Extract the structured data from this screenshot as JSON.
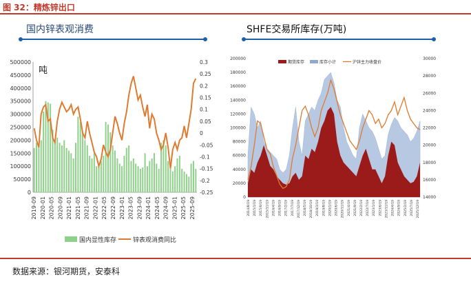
{
  "figure_title": "图 32：精炼锌出口",
  "source": "数据来源：银河期货，安泰科",
  "chart_data": [
    {
      "type": "bar+line",
      "title": "国内锌表观消费",
      "unit_label": "吨",
      "y_left_lim": [
        0,
        500000
      ],
      "y_left_ticks": [
        "500000",
        "450000",
        "400000",
        "350000",
        "300000",
        "250000",
        "200000",
        "150000",
        "100000",
        "50000",
        "0"
      ],
      "y_right_lim": [
        -0.25,
        0.3
      ],
      "y_right_ticks": [
        "0.3",
        "0.25",
        "0.2",
        "0.15",
        "0.1",
        "0.05",
        "0",
        "-0.05",
        "-0.1",
        "-0.15",
        "-0.2",
        "-0.25"
      ],
      "x_ticks": [
        "2019-09",
        "2020-01",
        "2020-05",
        "2020-09",
        "2021-01",
        "2021-05",
        "2021-09",
        "2022-01",
        "2022-05",
        "2022-09",
        "2023-01",
        "2023-05",
        "2023-09",
        "2024-01",
        "2024-05",
        "2024-09",
        "2025-01",
        "2025-05",
        "2025-09"
      ],
      "legend": [
        "国内显性库存",
        "锌表观消费同比"
      ],
      "colors": {
        "bar": "#8fd18a",
        "line": "#e07a2e"
      },
      "bar_series": {
        "name": "国内显性库存",
        "values": [
          170000,
          190000,
          180000,
          200000,
          310000,
          350000,
          345000,
          340000,
          240000,
          200000,
          210000,
          190000,
          180000,
          200000,
          170000,
          160000,
          150000,
          130000,
          190000,
          290000,
          270000,
          230000,
          200000,
          180000,
          140000,
          130000,
          150000,
          100000,
          110000,
          120000,
          140000,
          270000,
          260000,
          230000,
          180000,
          160000,
          130000,
          110000,
          100000,
          140000,
          170000,
          180000,
          120000,
          130000,
          110000,
          100000,
          90000,
          95000,
          150000,
          100000,
          120000,
          130000,
          150000,
          110000,
          90000,
          190000,
          200000,
          180000,
          120000,
          90000,
          80000,
          100000,
          130000,
          140000,
          90000,
          80000,
          70000,
          60000,
          110000,
          120000,
          90000
        ]
      },
      "line_series": {
        "name": "锌表观消费同比",
        "values": [
          0.02,
          -0.03,
          -0.06,
          0.08,
          0.11,
          0.12,
          0.05,
          0.06,
          -0.02,
          -0.04,
          0.05,
          0.1,
          0.13,
          0.11,
          0.09,
          0.1,
          0.12,
          0.08,
          0.1,
          0.11,
          0.06,
          0.0,
          -0.02,
          0.05,
          0.0,
          -0.04,
          -0.08,
          -0.1,
          -0.14,
          -0.11,
          -0.05,
          -0.08,
          -0.1,
          -0.07,
          0.0,
          0.07,
          0.04,
          0.0,
          -0.03,
          0.04,
          0.09,
          0.16,
          0.21,
          0.24,
          0.19,
          0.14,
          0.16,
          0.11,
          0.07,
          0.12,
          0.02,
          0.08,
          0.06,
          0.0,
          -0.03,
          -0.07,
          -0.05,
          0.0,
          -0.06,
          -0.15,
          -0.07,
          -0.04,
          -0.07,
          -0.03,
          -0.02,
          0.03,
          -0.02,
          0.04,
          0.1,
          0.21,
          0.23
        ]
      }
    },
    {
      "type": "area+line",
      "title": "SHFE交易所库存(万吨)",
      "y_left_lim": [
        0,
        200000
      ],
      "y_left_ticks": [
        "200000",
        "180000",
        "160000",
        "140000",
        "120000",
        "100000",
        "80000",
        "60000",
        "40000",
        "20000",
        "0"
      ],
      "y_right_lim": [
        14000,
        30000
      ],
      "y_right_ticks": [
        "30000",
        "28000",
        "26000",
        "24000",
        "22000",
        "20000",
        "18000",
        "16000",
        "14000"
      ],
      "x_ticks": [
        "2014/8/19",
        "2015/1/19",
        "2015/6/19",
        "2015/11/19",
        "2016/4/19",
        "2016/9/19",
        "2017/2/19",
        "2017/7/19",
        "2017/12/19",
        "2018/5/19",
        "2018/10/19",
        "2019/3/19",
        "2019/8/19",
        "2020/1/19",
        "2020/6/19",
        "2020/11/19",
        "2021/4/19",
        "2021/9/19",
        "2022/2/19",
        "2022/7/19",
        "2023/1/19",
        "2023/6/19",
        "2023/11/19",
        "2024/4/19",
        "2024/9/19",
        "2025/2/19",
        "2025/7/19",
        "2025/12/19"
      ],
      "legend": [
        "期货库存",
        "库存小计",
        "沪锌主力收盘价"
      ],
      "colors": {
        "futures": "#9b1b1b",
        "subtotal": "#b7c9e2",
        "price": "#e07a2e"
      },
      "futures_inventory": [
        20000,
        40000,
        35000,
        50000,
        60000,
        75000,
        60000,
        45000,
        40000,
        30000,
        25000,
        20000,
        18000,
        20000,
        30000,
        35000,
        25000,
        30000,
        60000,
        55000,
        70000,
        65000,
        80000,
        100000,
        110000,
        125000,
        130000,
        120000,
        80000,
        60000,
        50000,
        45000,
        40000,
        35000,
        30000,
        45000,
        60000,
        70000,
        55000,
        40000,
        40000,
        30000,
        20000,
        30000,
        60000,
        80000,
        75000,
        50000,
        40000,
        30000,
        25000,
        20000,
        22000,
        30000,
        50000
      ],
      "stock_subtotal": [
        60000,
        130000,
        120000,
        100000,
        110000,
        80000,
        70000,
        65000,
        60000,
        55000,
        40000,
        35000,
        40000,
        60000,
        100000,
        130000,
        80000,
        60000,
        110000,
        120000,
        130000,
        125000,
        140000,
        150000,
        170000,
        175000,
        180000,
        165000,
        140000,
        130000,
        100000,
        80000,
        70000,
        60000,
        55000,
        100000,
        120000,
        110000,
        100000,
        95000,
        85000,
        70000,
        55000,
        60000,
        90000,
        105000,
        115000,
        110000,
        100000,
        95000,
        90000,
        80000,
        85000,
        95000,
        110000
      ],
      "price_series": [
        16000,
        17500,
        20000,
        22800,
        22500,
        21000,
        19500,
        19000,
        17500,
        16500,
        15500,
        15000,
        15200,
        16000,
        18500,
        20000,
        22000,
        24000,
        24500,
        23500,
        22000,
        21000,
        22000,
        24000,
        25000,
        26000,
        27500,
        26500,
        25000,
        23500,
        22500,
        21500,
        20500,
        20000,
        19500,
        20500,
        22000,
        23000,
        24000,
        23500,
        22500,
        23000,
        22000,
        22500,
        23500,
        24000,
        25000,
        23500,
        24500,
        25500,
        24000,
        23000,
        22500,
        22000,
        21800
      ]
    }
  ]
}
